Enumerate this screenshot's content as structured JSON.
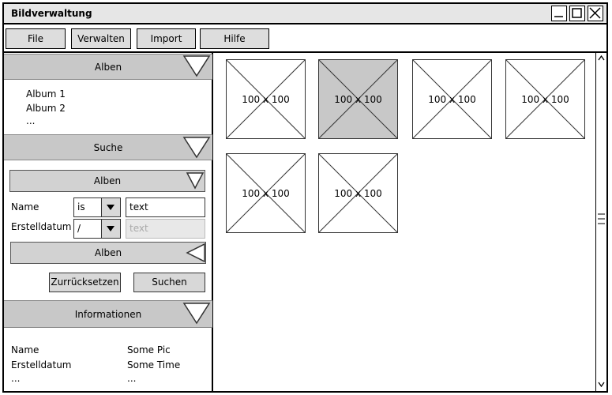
{
  "window": {
    "title": "Bildverwaltung"
  },
  "menu": {
    "items": [
      "File",
      "Verwalten",
      "Import",
      "Hilfe"
    ]
  },
  "left": {
    "alben": {
      "header": "Alben",
      "items": [
        "Album 1",
        "Album 2",
        "..."
      ]
    },
    "suche": {
      "header": "Suche",
      "dropdown1": "Alben",
      "rows": [
        {
          "label": "Name",
          "operator": "is",
          "value": "text"
        },
        {
          "label": "Erstelldatum",
          "operator": "/",
          "placeholder": "text"
        }
      ],
      "dropdown2": "Alben",
      "reset_label": "Zurrücksetzen",
      "search_label": "Suchen"
    },
    "info": {
      "header": "Informationen",
      "rows": [
        {
          "key": "Name",
          "value": "Some Pic"
        },
        {
          "key": "Erstelldatum",
          "value": "Some Time"
        },
        {
          "key": "...",
          "value": "..."
        }
      ]
    }
  },
  "gallery": {
    "thumbs": [
      {
        "caption": "100 x 100",
        "selected": false
      },
      {
        "caption": "100 x 100",
        "selected": true
      },
      {
        "caption": "100 x 100",
        "selected": false
      },
      {
        "caption": "100 x 100",
        "selected": false
      },
      {
        "caption": "100 x 100",
        "selected": false
      },
      {
        "caption": "100 x 100",
        "selected": false
      }
    ]
  },
  "icons": {
    "minimize": "minimize-icon",
    "maximize": "maximize-icon",
    "close": "close-icon"
  }
}
